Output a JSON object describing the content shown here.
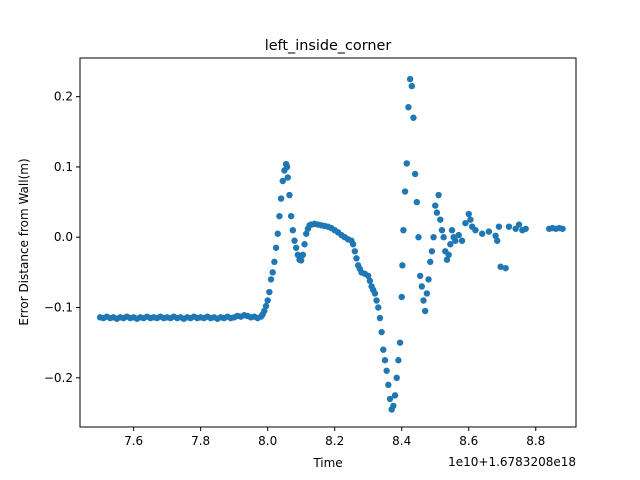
{
  "chart_data": {
    "type": "scatter",
    "title": "left_inside_corner",
    "xlabel": "Time",
    "ylabel": "Error Distance from Wall(m)",
    "x_offset_label": "1e10+1.6783208e18",
    "xlim": [
      7.44,
      8.92
    ],
    "ylim": [
      -0.27,
      0.255
    ],
    "grid": false,
    "marker_color": "#1f77b4",
    "x_ticks": [
      {
        "value": 7.6,
        "label": "7.6"
      },
      {
        "value": 7.8,
        "label": "7.8"
      },
      {
        "value": 8.0,
        "label": "8.0"
      },
      {
        "value": 8.2,
        "label": "8.2"
      },
      {
        "value": 8.4,
        "label": "8.4"
      },
      {
        "value": 8.6,
        "label": "8.6"
      },
      {
        "value": 8.8,
        "label": "8.8"
      }
    ],
    "y_ticks": [
      {
        "value": -0.2,
        "label": "−0.2"
      },
      {
        "value": -0.1,
        "label": "−0.1"
      },
      {
        "value": 0.0,
        "label": "0.0"
      },
      {
        "value": 0.1,
        "label": "0.1"
      },
      {
        "value": 0.2,
        "label": "0.2"
      }
    ],
    "points": [
      [
        7.5,
        -0.114
      ],
      [
        7.51,
        -0.115
      ],
      [
        7.52,
        -0.113
      ],
      [
        7.53,
        -0.115
      ],
      [
        7.54,
        -0.114
      ],
      [
        7.55,
        -0.116
      ],
      [
        7.56,
        -0.114
      ],
      [
        7.57,
        -0.115
      ],
      [
        7.58,
        -0.113
      ],
      [
        7.59,
        -0.115
      ],
      [
        7.6,
        -0.114
      ],
      [
        7.61,
        -0.116
      ],
      [
        7.62,
        -0.114
      ],
      [
        7.63,
        -0.115
      ],
      [
        7.64,
        -0.113
      ],
      [
        7.65,
        -0.115
      ],
      [
        7.66,
        -0.114
      ],
      [
        7.67,
        -0.115
      ],
      [
        7.68,
        -0.113
      ],
      [
        7.69,
        -0.115
      ],
      [
        7.7,
        -0.114
      ],
      [
        7.71,
        -0.115
      ],
      [
        7.72,
        -0.113
      ],
      [
        7.73,
        -0.115
      ],
      [
        7.74,
        -0.114
      ],
      [
        7.75,
        -0.116
      ],
      [
        7.76,
        -0.114
      ],
      [
        7.77,
        -0.115
      ],
      [
        7.78,
        -0.113
      ],
      [
        7.79,
        -0.115
      ],
      [
        7.8,
        -0.114
      ],
      [
        7.81,
        -0.115
      ],
      [
        7.82,
        -0.113
      ],
      [
        7.83,
        -0.115
      ],
      [
        7.84,
        -0.114
      ],
      [
        7.85,
        -0.116
      ],
      [
        7.86,
        -0.114
      ],
      [
        7.87,
        -0.115
      ],
      [
        7.88,
        -0.113
      ],
      [
        7.89,
        -0.115
      ],
      [
        7.9,
        -0.114
      ],
      [
        7.91,
        -0.112
      ],
      [
        7.92,
        -0.113
      ],
      [
        7.93,
        -0.111
      ],
      [
        7.94,
        -0.112
      ],
      [
        7.95,
        -0.114
      ],
      [
        7.96,
        -0.113
      ],
      [
        7.97,
        -0.115
      ],
      [
        7.98,
        -0.113
      ],
      [
        7.985,
        -0.11
      ],
      [
        7.99,
        -0.105
      ],
      [
        7.995,
        -0.098
      ],
      [
        8.0,
        -0.09
      ],
      [
        8.005,
        -0.078
      ],
      [
        8.01,
        -0.06
      ],
      [
        8.015,
        -0.05
      ],
      [
        8.02,
        -0.035
      ],
      [
        8.025,
        -0.015
      ],
      [
        8.03,
        0.005
      ],
      [
        8.035,
        0.03
      ],
      [
        8.04,
        0.055
      ],
      [
        8.045,
        0.08
      ],
      [
        8.05,
        0.095
      ],
      [
        8.055,
        0.104
      ],
      [
        8.058,
        0.1
      ],
      [
        8.06,
        0.085
      ],
      [
        8.065,
        0.06
      ],
      [
        8.07,
        0.03
      ],
      [
        8.075,
        0.01
      ],
      [
        8.08,
        -0.005
      ],
      [
        8.085,
        -0.015
      ],
      [
        8.09,
        -0.025
      ],
      [
        8.095,
        -0.032
      ],
      [
        8.1,
        -0.033
      ],
      [
        8.105,
        -0.025
      ],
      [
        8.11,
        -0.01
      ],
      [
        8.115,
        0.005
      ],
      [
        8.12,
        0.012
      ],
      [
        8.125,
        0.017
      ],
      [
        8.13,
        0.018
      ],
      [
        8.14,
        0.019
      ],
      [
        8.15,
        0.018
      ],
      [
        8.16,
        0.017
      ],
      [
        8.17,
        0.016
      ],
      [
        8.18,
        0.015
      ],
      [
        8.19,
        0.013
      ],
      [
        8.2,
        0.01
      ],
      [
        8.21,
        0.007
      ],
      [
        8.22,
        0.003
      ],
      [
        8.23,
        0.0
      ],
      [
        8.24,
        -0.003
      ],
      [
        8.25,
        -0.005
      ],
      [
        8.255,
        -0.01
      ],
      [
        8.26,
        -0.02
      ],
      [
        8.265,
        -0.03
      ],
      [
        8.27,
        -0.04
      ],
      [
        8.275,
        -0.045
      ],
      [
        8.28,
        -0.05
      ],
      [
        8.29,
        -0.052
      ],
      [
        8.3,
        -0.055
      ],
      [
        8.305,
        -0.062
      ],
      [
        8.31,
        -0.07
      ],
      [
        8.315,
        -0.075
      ],
      [
        8.32,
        -0.08
      ],
      [
        8.325,
        -0.09
      ],
      [
        8.33,
        -0.1
      ],
      [
        8.335,
        -0.115
      ],
      [
        8.34,
        -0.135
      ],
      [
        8.345,
        -0.16
      ],
      [
        8.35,
        -0.175
      ],
      [
        8.355,
        -0.19
      ],
      [
        8.36,
        -0.21
      ],
      [
        8.365,
        -0.23
      ],
      [
        8.37,
        -0.245
      ],
      [
        8.375,
        -0.24
      ],
      [
        8.38,
        -0.225
      ],
      [
        8.385,
        -0.2
      ],
      [
        8.39,
        -0.175
      ],
      [
        8.395,
        -0.15
      ],
      [
        8.4,
        -0.085
      ],
      [
        8.402,
        -0.04
      ],
      [
        8.405,
        0.01
      ],
      [
        8.41,
        0.065
      ],
      [
        8.415,
        0.105
      ],
      [
        8.42,
        0.185
      ],
      [
        8.425,
        0.225
      ],
      [
        8.43,
        0.215
      ],
      [
        8.435,
        0.17
      ],
      [
        8.44,
        0.09
      ],
      [
        8.445,
        0.05
      ],
      [
        8.45,
        0.0
      ],
      [
        8.455,
        -0.055
      ],
      [
        8.46,
        -0.07
      ],
      [
        8.465,
        -0.09
      ],
      [
        8.47,
        -0.105
      ],
      [
        8.475,
        -0.08
      ],
      [
        8.48,
        -0.06
      ],
      [
        8.485,
        -0.035
      ],
      [
        8.49,
        -0.02
      ],
      [
        8.495,
        0.0
      ],
      [
        8.5,
        0.045
      ],
      [
        8.505,
        0.035
      ],
      [
        8.51,
        0.06
      ],
      [
        8.515,
        0.025
      ],
      [
        8.52,
        0.01
      ],
      [
        8.525,
        0.0
      ],
      [
        8.53,
        -0.02
      ],
      [
        8.535,
        -0.032
      ],
      [
        8.54,
        -0.025
      ],
      [
        8.545,
        -0.01
      ],
      [
        8.55,
        0.01
      ],
      [
        8.555,
        0.0
      ],
      [
        8.56,
        -0.005
      ],
      [
        8.57,
        0.003
      ],
      [
        8.58,
        -0.005
      ],
      [
        8.59,
        0.02
      ],
      [
        8.6,
        0.033
      ],
      [
        8.605,
        0.025
      ],
      [
        8.61,
        0.015
      ],
      [
        8.62,
        0.01
      ],
      [
        8.64,
        0.005
      ],
      [
        8.66,
        0.008
      ],
      [
        8.68,
        0.002
      ],
      [
        8.685,
        -0.005
      ],
      [
        8.69,
        0.015
      ],
      [
        8.695,
        -0.042
      ],
      [
        8.71,
        -0.044
      ],
      [
        8.72,
        0.015
      ],
      [
        8.74,
        0.012
      ],
      [
        8.75,
        0.018
      ],
      [
        8.76,
        0.01
      ],
      [
        8.77,
        0.012
      ],
      [
        8.84,
        0.012
      ],
      [
        8.85,
        0.013
      ],
      [
        8.86,
        0.012
      ],
      [
        8.87,
        0.013
      ],
      [
        8.88,
        0.012
      ]
    ]
  }
}
